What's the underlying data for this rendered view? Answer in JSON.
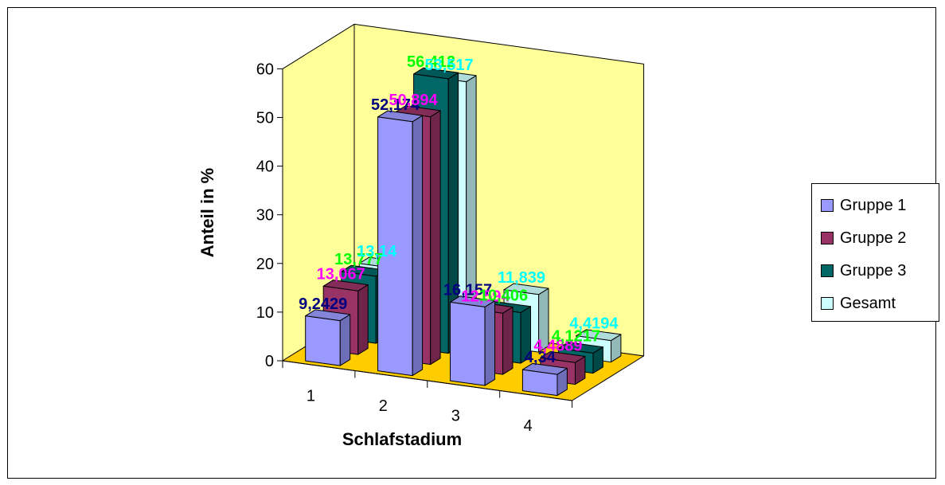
{
  "chart_data": {
    "type": "bar",
    "title": "",
    "xlabel": "Schlafstadium",
    "ylabel": "Anteil in %",
    "categories": [
      "1",
      "2",
      "3",
      "4"
    ],
    "ylim": [
      0,
      60
    ],
    "yticks": [
      "0",
      "10",
      "20",
      "30",
      "40",
      "50",
      "60"
    ],
    "grid": false,
    "legend_position": "right",
    "series": [
      {
        "name": "Gruppe 1",
        "values": [
          9.2429,
          52.174,
          16.157,
          4.34
        ],
        "labels": [
          "9,2429",
          "52,174",
          "16,157",
          "4,34"
        ],
        "color": "#9999ff",
        "label_color": "#000080"
      },
      {
        "name": "Gruppe 2",
        "values": [
          13.067,
          50.894,
          12.594,
          4.4889
        ],
        "labels": [
          "13,067",
          "50,894",
          "12,594",
          "4,4889"
        ],
        "color": "#993366",
        "label_color": "#ff00ff"
      },
      {
        "name": "Gruppe 3",
        "values": [
          13.777,
          56.412,
          10.406,
          4.1217
        ],
        "labels": [
          "13,777",
          "56,412",
          "10,406",
          "4,1217"
        ],
        "color": "#006666",
        "label_color": "#00ff00"
      },
      {
        "name": "Gesamt",
        "values": [
          13.14,
          53.517,
          11.839,
          4.4194
        ],
        "labels": [
          "13,14",
          "53,517",
          "11,839",
          "4,4194"
        ],
        "color": "#ccffff",
        "label_color": "#00ffff"
      }
    ],
    "wall_color": "#ffff99",
    "floor_color": "#ffcc00"
  }
}
